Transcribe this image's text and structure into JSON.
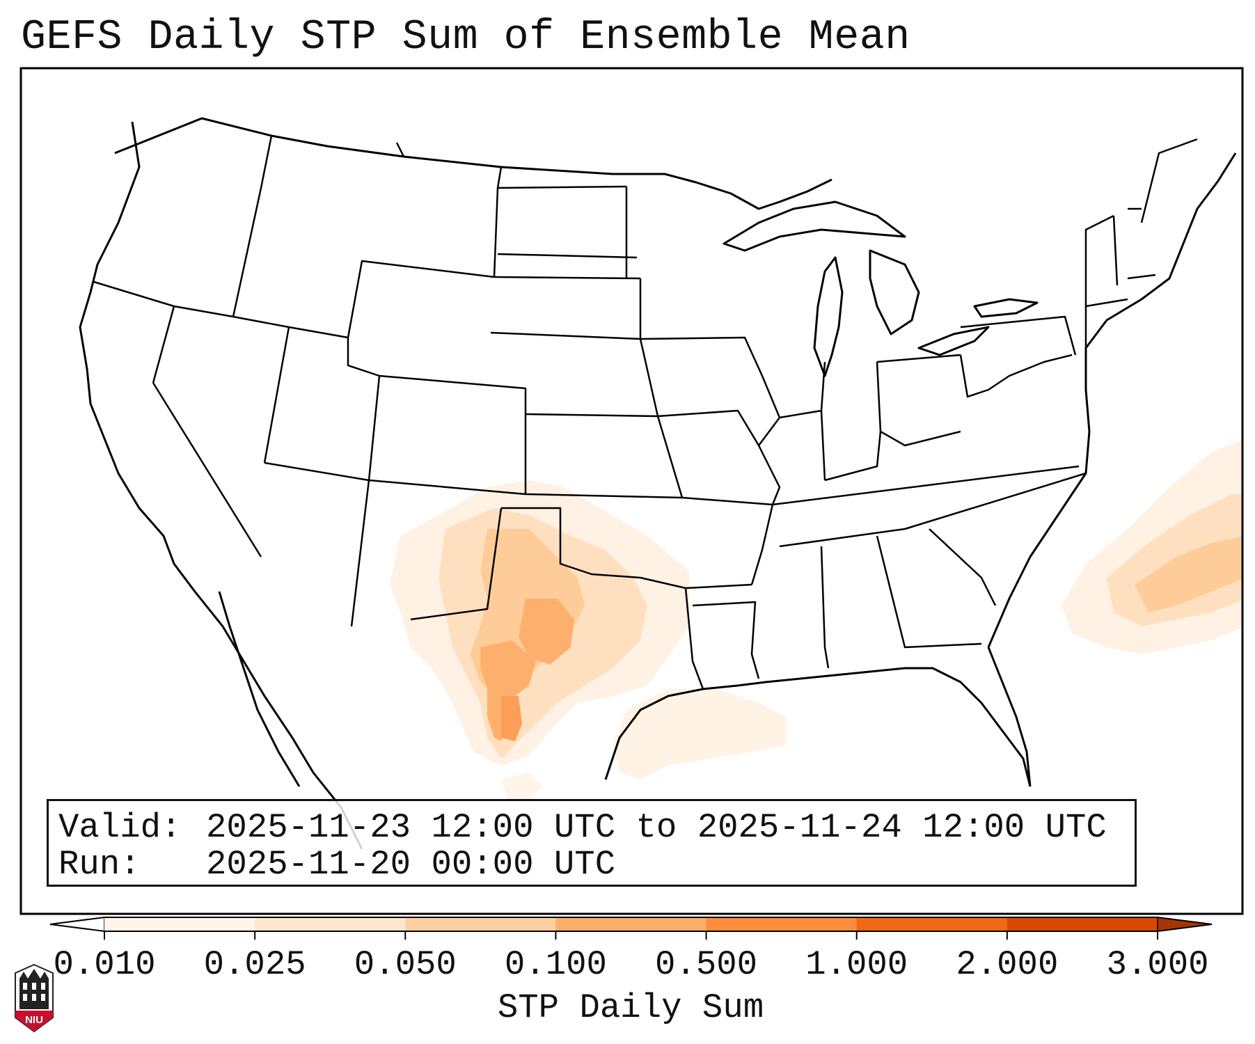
{
  "title": "GEFS Daily STP Sum of Ensemble Mean",
  "info": {
    "valid_label": "Valid:",
    "valid_value": "2025-11-23 12:00 UTC to 2025-11-24 12:00 UTC",
    "run_label": "Run:",
    "run_value": "2025-11-20 00:00 UTC"
  },
  "colorbar": {
    "label": "STP Daily Sum",
    "ticks": [
      "0.010",
      "0.025",
      "0.050",
      "0.100",
      "0.500",
      "1.000",
      "2.000",
      "3.000"
    ],
    "colors": [
      "#fff5eb",
      "#fee6ce",
      "#fdd0a2",
      "#fdae6b",
      "#fd8d3c",
      "#f16913",
      "#d94801",
      "#a63603"
    ],
    "extend": "both"
  },
  "logo": {
    "text": "NIU",
    "color": "#c8102e"
  }
}
